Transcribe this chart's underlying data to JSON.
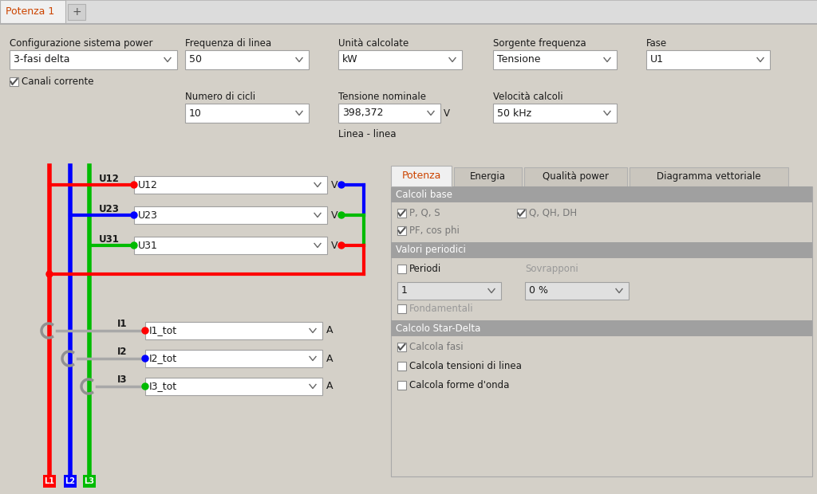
{
  "bg_color": "#d4d0c8",
  "red": "#ff0000",
  "blue": "#0000ff",
  "green": "#00bb00",
  "title_tab": "Potenza 1",
  "title_tab_color": "#cc4400",
  "config_label": "Configurazione sistema power",
  "config_value": "3-fasi delta",
  "freq_label": "Frequenza di linea",
  "freq_value": "50",
  "unit_label": "Unità calcolate",
  "unit_value": "kW",
  "source_label": "Sorgente frequenza",
  "source_value": "Tensione",
  "fase_label": "Fase",
  "fase_value": "U1",
  "canali_label": "Canali corrente",
  "cicli_label": "Numero di cicli",
  "cicli_value": "10",
  "tensione_label": "Tensione nominale",
  "tensione_value": "398,372",
  "velocita_label": "Velocità calcoli",
  "velocita_value": "50 kHz",
  "linea_label": "Linea - linea",
  "tab_names": [
    "Potenza",
    "Energia",
    "Qualità power",
    "Diagramma vettoriale"
  ],
  "active_tab": "Potenza",
  "active_tab_color": "#cc4400",
  "section1": "Calcoli base",
  "cb1": "P, Q, S",
  "cb2": "Q, QH, DH",
  "cb3": "PF, cos phi",
  "section2": "Valori periodici",
  "cb4": "Periodi",
  "label_sovr": "Sovrapponi",
  "dd1": "1",
  "dd2": "0 %",
  "cb5": "Fondamentali",
  "section3": "Calcolo Star-Delta",
  "cb6": "Calcola fasi",
  "cb7": "Calcola tensioni di linea",
  "cb8": "Calcola forme d'onda",
  "l1_label": "L1",
  "l2_label": "L2",
  "l3_label": "L3"
}
